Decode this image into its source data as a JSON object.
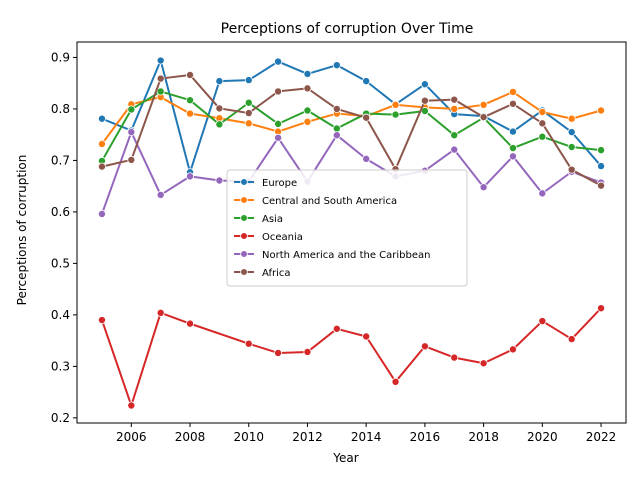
{
  "chart_data": {
    "type": "line",
    "title": "Perceptions of corruption Over Time",
    "xlabel": "Year",
    "ylabel": "Perceptions of corruption",
    "xlim": [
      2004.15,
      2022.85
    ],
    "ylim": [
      0.19,
      0.93
    ],
    "xticks": [
      2006,
      2008,
      2010,
      2012,
      2014,
      2016,
      2018,
      2020,
      2022
    ],
    "yticks": [
      0.2,
      0.3,
      0.4,
      0.5,
      0.6,
      0.7,
      0.8,
      0.9
    ],
    "grid": false,
    "legend_position": "center",
    "x": [
      2005,
      2006,
      2007,
      2008,
      2009,
      2010,
      2011,
      2012,
      2013,
      2014,
      2015,
      2016,
      2017,
      2018,
      2019,
      2020,
      2021,
      2022
    ],
    "series": [
      {
        "name": "Europe",
        "color": "#1f77b4",
        "values": [
          0.781,
          0.758,
          0.894,
          0.677,
          0.854,
          0.856,
          0.892,
          0.868,
          0.885,
          0.854,
          0.809,
          0.848,
          0.79,
          0.786,
          0.756,
          0.797,
          0.755,
          0.689
        ]
      },
      {
        "name": "Central and South America",
        "color": "#ff7f0e",
        "values": [
          0.732,
          0.809,
          0.823,
          0.791,
          0.782,
          0.772,
          0.756,
          0.775,
          0.791,
          0.786,
          0.808,
          0.803,
          0.8,
          0.808,
          0.833,
          0.794,
          0.781,
          0.797
        ]
      },
      {
        "name": "Asia",
        "color": "#2ca02c",
        "values": [
          0.699,
          0.799,
          0.834,
          0.817,
          0.77,
          0.812,
          0.771,
          0.797,
          0.762,
          0.791,
          0.789,
          0.796,
          0.749,
          0.783,
          0.724,
          0.746,
          0.726,
          0.72
        ]
      },
      {
        "name": "Oceania",
        "color": "#d62728",
        "values": [
          0.39,
          0.224,
          0.404,
          0.383,
          null,
          0.344,
          0.326,
          0.328,
          0.373,
          0.358,
          0.27,
          0.339,
          0.317,
          0.306,
          0.333,
          0.388,
          0.353,
          0.413
        ]
      },
      {
        "name": "North America and the Caribbean",
        "color": "#9467bd",
        "values": [
          0.596,
          0.755,
          0.633,
          0.669,
          0.661,
          0.659,
          0.744,
          0.659,
          0.749,
          0.703,
          0.669,
          0.68,
          0.721,
          0.648,
          0.708,
          0.636,
          0.678,
          0.657
        ]
      },
      {
        "name": "Africa",
        "color": "#8c564b",
        "values": [
          0.688,
          0.701,
          0.859,
          0.866,
          0.801,
          0.792,
          0.834,
          0.84,
          0.8,
          0.783,
          0.683,
          0.816,
          0.818,
          0.784,
          0.81,
          0.772,
          0.682,
          0.651
        ]
      }
    ]
  }
}
